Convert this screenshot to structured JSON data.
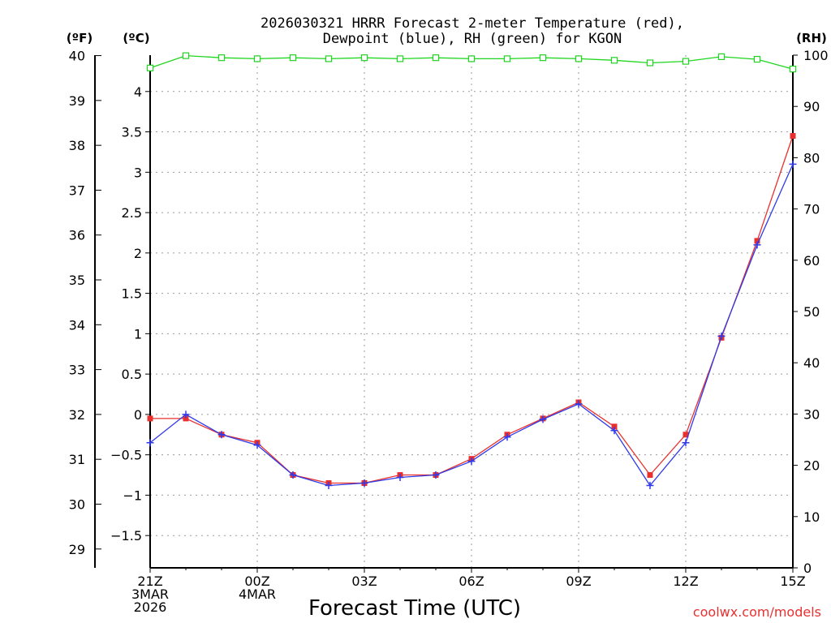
{
  "chart_data": {
    "type": "line",
    "title_line1": "2026030321 HRRR Forecast 2-meter Temperature (red),",
    "title_line2": "Dewpoint (blue), RH (green) for KGON",
    "xlabel": "Forecast Time (UTC)",
    "unit_left_f": "(ºF)",
    "unit_left_c": "(ºC)",
    "unit_right": "(RH)",
    "credit": "coolwx.com/models",
    "x_hours": [
      0,
      1,
      2,
      3,
      4,
      5,
      6,
      7,
      8,
      9,
      10,
      11,
      12,
      13,
      14,
      15,
      16,
      17,
      18
    ],
    "x_ticks": [
      {
        "hour": 0,
        "lines": [
          "21Z",
          "3MAR",
          "2026"
        ]
      },
      {
        "hour": 3,
        "lines": [
          "00Z",
          "4MAR"
        ]
      },
      {
        "hour": 6,
        "lines": [
          "03Z"
        ]
      },
      {
        "hour": 9,
        "lines": [
          "06Z"
        ]
      },
      {
        "hour": 12,
        "lines": [
          "09Z"
        ]
      },
      {
        "hour": 15,
        "lines": [
          "12Z"
        ]
      },
      {
        "hour": 18,
        "lines": [
          "15Z"
        ]
      }
    ],
    "celsius_range": [
      -1.9,
      4.45
    ],
    "celsius_ticks": [
      "-1.5",
      "-1",
      "-0.5",
      "0",
      "0.5",
      "1",
      "1.5",
      "2",
      "2.5",
      "3",
      "3.5",
      "4"
    ],
    "fahrenheit_ticks": [
      "29",
      "30",
      "31",
      "32",
      "33",
      "34",
      "35",
      "36",
      "37",
      "38",
      "39",
      "40"
    ],
    "rh_range": [
      0,
      100
    ],
    "rh_ticks": [
      "0",
      "10",
      "20",
      "30",
      "40",
      "50",
      "60",
      "70",
      "80",
      "90",
      "100"
    ],
    "series": [
      {
        "name": "Temperature",
        "unit": "C",
        "color": "#e8312f",
        "marker": "square",
        "values": [
          -0.05,
          -0.05,
          -0.25,
          -0.35,
          -0.75,
          -0.85,
          -0.85,
          -0.75,
          -0.75,
          -0.55,
          -0.25,
          -0.05,
          0.15,
          -0.15,
          -0.75,
          -0.25,
          0.95,
          2.15,
          3.45
        ]
      },
      {
        "name": "Dewpoint",
        "unit": "C",
        "color": "#2f3ae8",
        "marker": "plus",
        "values": [
          -0.35,
          0.0,
          -0.25,
          -0.38,
          -0.75,
          -0.88,
          -0.85,
          -0.78,
          -0.75,
          -0.58,
          -0.28,
          -0.06,
          0.13,
          -0.2,
          -0.88,
          -0.35,
          0.97,
          2.1,
          3.1
        ]
      },
      {
        "name": "RH",
        "unit": "%",
        "color": "#1ed61e",
        "marker": "open-square",
        "values": [
          97.5,
          99.9,
          99.5,
          99.3,
          99.5,
          99.3,
          99.5,
          99.3,
          99.5,
          99.3,
          99.3,
          99.5,
          99.3,
          99.0,
          98.5,
          98.8,
          99.7,
          99.2,
          97.3
        ]
      }
    ]
  }
}
